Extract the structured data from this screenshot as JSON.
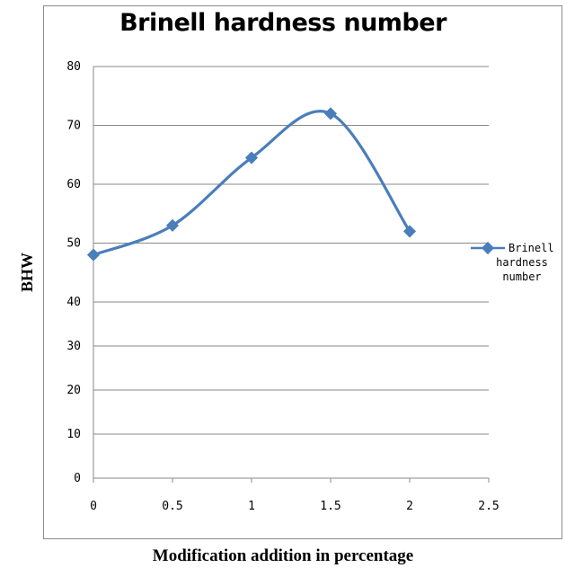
{
  "chart_data": {
    "type": "line",
    "title": "Brinell hardness number",
    "xlabel": "Modification addition in percentage",
    "ylabel": "BHW",
    "x_ticks": [
      "0",
      "0.5",
      "1",
      "1.5",
      "2",
      "2.5"
    ],
    "y_ticks": [
      "0",
      "10",
      "20",
      "30",
      "40",
      "50",
      "60",
      "70",
      "80"
    ],
    "xlim": [
      0,
      2.5
    ],
    "ylim": [
      0,
      80
    ],
    "grid": "horizontal",
    "legend_position": "right",
    "series": [
      {
        "name": "Brinell hardness number",
        "color": "#4a7ebb",
        "x": [
          0,
          0.5,
          1,
          1.5,
          2
        ],
        "y": [
          48,
          53,
          64.5,
          72,
          52
        ]
      }
    ]
  },
  "legend": {
    "label_line1": "Brinell",
    "label_line2": "hardness",
    "label_line3": "number"
  }
}
